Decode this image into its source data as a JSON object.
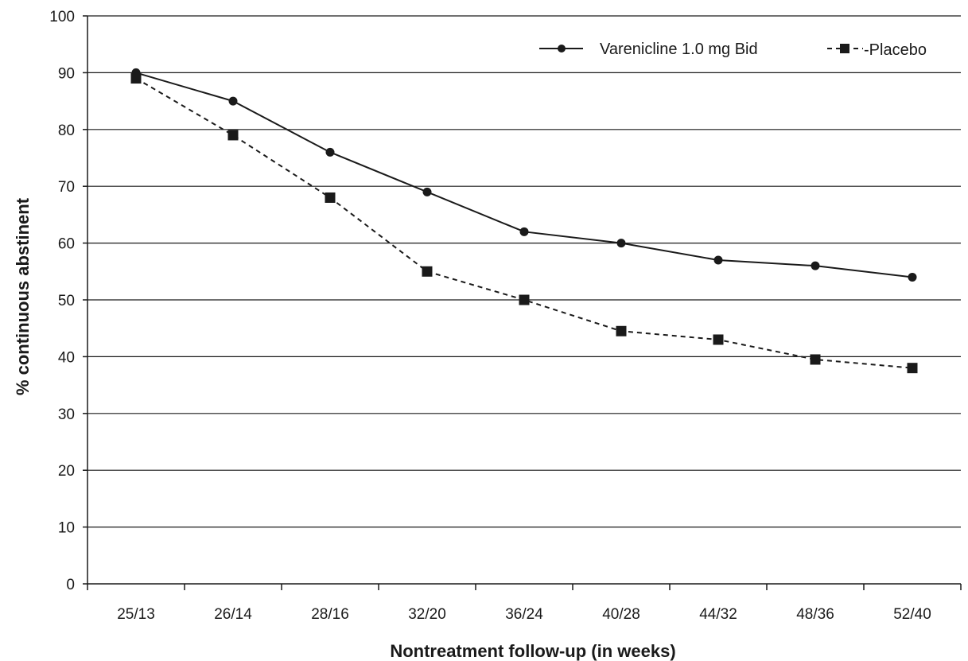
{
  "chart_data": {
    "type": "line",
    "title": "",
    "xlabel": "Nontreatment follow-up (in weeks)",
    "ylabel": "% continuous abstinent",
    "categories": [
      "25/13",
      "26/14",
      "28/16",
      "32/20",
      "36/24",
      "40/28",
      "44/32",
      "48/36",
      "52/40"
    ],
    "ylim": [
      0,
      100
    ],
    "yticks": [
      0,
      10,
      20,
      30,
      40,
      50,
      60,
      70,
      80,
      90,
      100
    ],
    "grid": "horizontal",
    "legend_position": "top-right",
    "series": [
      {
        "name": "Varenicline 1.0 mg Bid",
        "values": [
          90,
          85,
          76,
          69,
          62,
          60,
          57,
          56,
          54
        ],
        "line_style": "solid",
        "marker": "circle",
        "color": "#1a1a1a"
      },
      {
        "name": "Placebo",
        "legend_prefix": "-",
        "values": [
          89,
          79,
          68,
          55,
          50,
          44.5,
          43,
          39.5,
          38
        ],
        "line_style": "dashed",
        "marker": "square",
        "color": "#1a1a1a"
      }
    ]
  }
}
